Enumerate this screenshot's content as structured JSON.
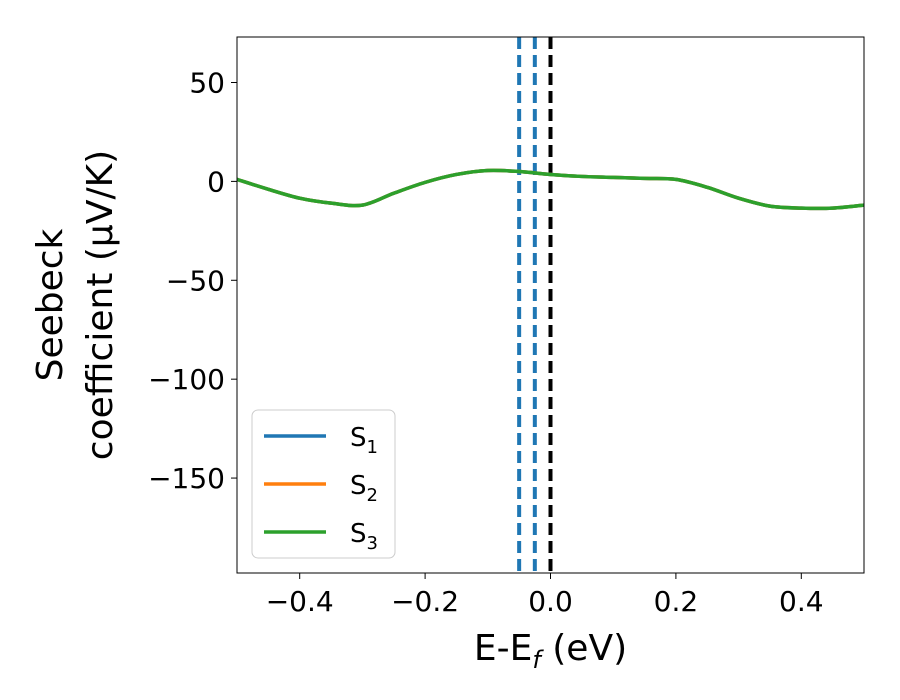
{
  "chart_data": {
    "type": "line",
    "title": "",
    "xlabel": {
      "main": "E-E",
      "sub": "f",
      "suffix": " (eV)"
    },
    "ylabel": {
      "line1": "Seebeck",
      "line2": "coefficient  (μV/K)"
    },
    "xlim": [
      -0.5,
      0.5
    ],
    "ylim": [
      -198,
      73
    ],
    "xticks": [
      -0.4,
      -0.2,
      0.0,
      0.2,
      0.4
    ],
    "xtick_labels": [
      "−0.4",
      "−0.2",
      "0.0",
      "0.2",
      "0.4"
    ],
    "yticks": [
      50,
      0,
      -50,
      -100,
      -150
    ],
    "ytick_labels": [
      "50",
      "0",
      "−50",
      "−100",
      "−150"
    ],
    "grid": false,
    "legend_position": "lower-left",
    "series": [
      {
        "name": "S",
        "sub": "1",
        "color": "#1f77b4",
        "x": [
          -0.5,
          -0.45,
          -0.4,
          -0.35,
          -0.3,
          -0.25,
          -0.2,
          -0.15,
          -0.1,
          -0.05,
          0.0,
          0.05,
          0.1,
          0.15,
          0.2,
          0.25,
          0.3,
          0.35,
          0.4,
          0.45,
          0.5
        ],
        "y": [
          1,
          -4,
          -8.5,
          -11,
          -12,
          -6,
          -0.5,
          3.5,
          5.5,
          5,
          3.5,
          2.5,
          2,
          1.5,
          1,
          -3,
          -8.5,
          -12.5,
          -13.5,
          -13.5,
          -12
        ]
      },
      {
        "name": "S",
        "sub": "2",
        "color": "#ff7f0e",
        "x": [
          -0.5,
          -0.45,
          -0.4,
          -0.35,
          -0.3,
          -0.25,
          -0.2,
          -0.15,
          -0.1,
          -0.05,
          0.0,
          0.05,
          0.1,
          0.15,
          0.2,
          0.25,
          0.3,
          0.35,
          0.4,
          0.45,
          0.5
        ],
        "y": [
          1,
          -4,
          -8.5,
          -11,
          -12,
          -6,
          -0.5,
          3.5,
          5.5,
          5,
          3.5,
          2.5,
          2,
          1.5,
          1,
          -3,
          -8.5,
          -12.5,
          -13.5,
          -13.5,
          -12
        ]
      },
      {
        "name": "S",
        "sub": "3",
        "color": "#2ca02c",
        "x": [
          -0.5,
          -0.45,
          -0.4,
          -0.35,
          -0.3,
          -0.25,
          -0.2,
          -0.15,
          -0.1,
          -0.05,
          0.0,
          0.05,
          0.1,
          0.15,
          0.2,
          0.25,
          0.3,
          0.35,
          0.4,
          0.45,
          0.5
        ],
        "y": [
          1,
          -4,
          -8.5,
          -11,
          -12,
          -6,
          -0.5,
          3.5,
          5.5,
          5,
          3.5,
          2.5,
          2,
          1.5,
          1,
          -3,
          -8.5,
          -12.5,
          -13.5,
          -13.5,
          -12
        ]
      }
    ],
    "vlines": [
      {
        "x": -0.05,
        "color": "#1f77b4",
        "style": "dashed"
      },
      {
        "x": -0.025,
        "color": "#1f77b4",
        "style": "dashed"
      },
      {
        "x": 0.0,
        "color": "#000000",
        "style": "dashed"
      }
    ]
  }
}
